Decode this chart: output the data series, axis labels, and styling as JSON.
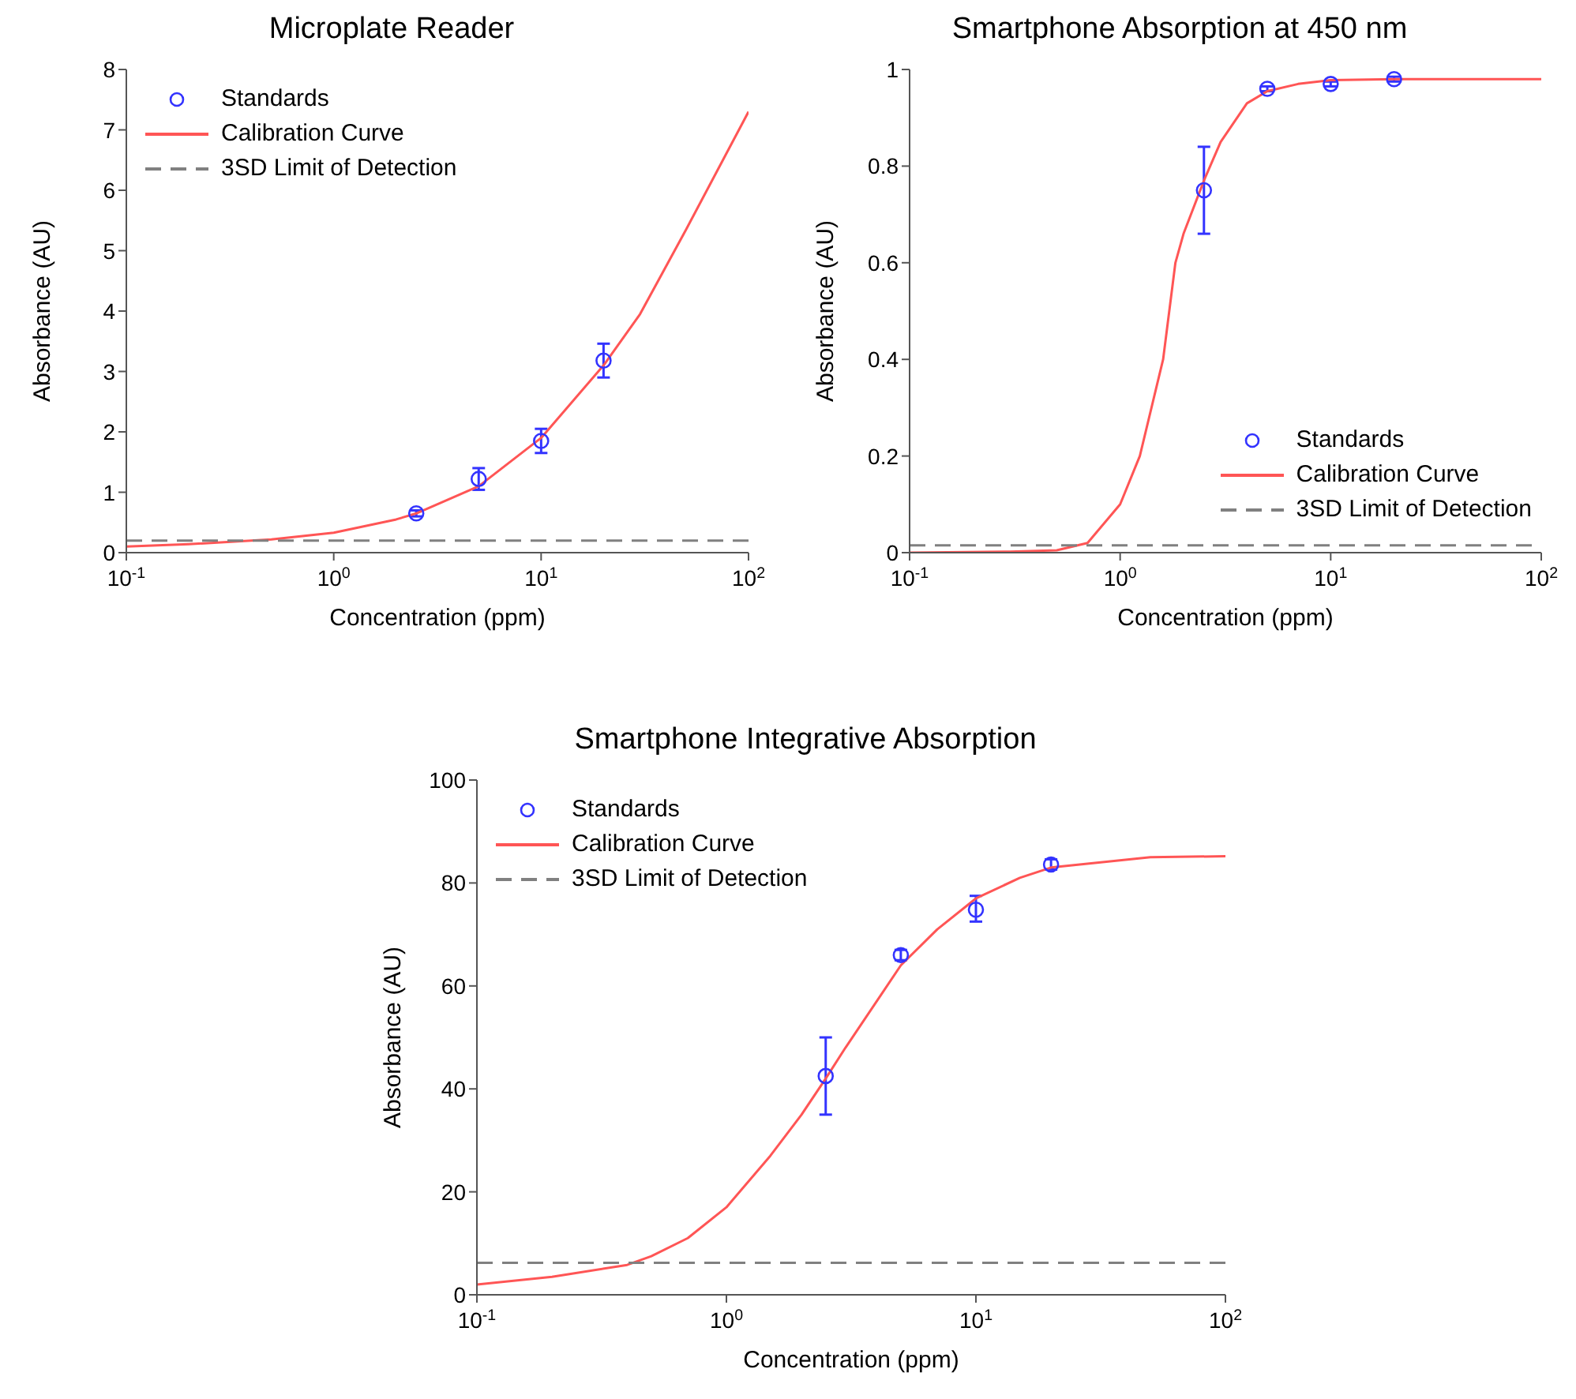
{
  "chart_data": [
    {
      "type": "line",
      "title": "Microplate Reader",
      "xlabel": "Concentration (ppm)",
      "ylabel": "Absorbance (AU)",
      "log": "x",
      "xlim": [
        0.1,
        100
      ],
      "xticks": [
        {
          "value": 0.1,
          "label": "10$^{-1}$"
        },
        {
          "value": 1,
          "label": "10$^{0}$"
        },
        {
          "value": 10,
          "label": "10$^{1}$"
        },
        {
          "value": 100,
          "label": "10$^{2}$"
        }
      ],
      "ylim": [
        0,
        8
      ],
      "yticks": [
        0,
        1,
        2,
        3,
        4,
        5,
        6,
        7,
        8
      ],
      "legend": "top left",
      "series": [
        {
          "name": "Standards",
          "type": "scatter",
          "color": "#3333ff",
          "marker": "circle",
          "x": [
            2.5,
            5,
            10,
            20
          ],
          "values": [
            0.65,
            1.22,
            1.85,
            3.18
          ],
          "errors": [
            0.05,
            0.18,
            0.2,
            0.28
          ]
        },
        {
          "name": "Calibration Curve",
          "type": "line",
          "color": "#ff5555",
          "marker": "none",
          "x": [
            0.1,
            0.2,
            0.5,
            1,
            2,
            2.5,
            5,
            10,
            20,
            30,
            50,
            100
          ],
          "values": [
            0.1,
            0.14,
            0.22,
            0.33,
            0.55,
            0.65,
            1.1,
            1.9,
            3.1,
            3.95,
            5.35,
            7.3
          ]
        },
        {
          "name": "3SD Limit of Detection",
          "type": "line",
          "color": "#808080",
          "marker": "none",
          "line_style": "dashed",
          "x": [
            0.1,
            100
          ],
          "values": [
            0.2,
            0.2
          ]
        }
      ]
    },
    {
      "type": "line",
      "title": "Smartphone Absorption at 450 nm",
      "xlabel": "Concentration (ppm)",
      "ylabel": "Absorbance (AU)",
      "log": "x",
      "xlim": [
        0.1,
        100
      ],
      "xticks": [
        {
          "value": 0.1,
          "label": "10$^{-1}$"
        },
        {
          "value": 1,
          "label": "10$^{0}$"
        },
        {
          "value": 10,
          "label": "10$^{1}$"
        },
        {
          "value": 100,
          "label": "10$^{2}$"
        }
      ],
      "ylim": [
        0,
        1
      ],
      "yticks": [
        0,
        0.2,
        0.4,
        0.6,
        0.8,
        1
      ],
      "legend": "bottom right",
      "series": [
        {
          "name": "Standards",
          "type": "scatter",
          "color": "#3333ff",
          "marker": "circle",
          "x": [
            2.5,
            5,
            10,
            20
          ],
          "values": [
            0.75,
            0.96,
            0.97,
            0.98
          ],
          "errors": [
            [
              0.66,
              0.84
            ],
            0.005,
            0.005,
            0.005
          ]
        },
        {
          "name": "Calibration Curve",
          "type": "line",
          "color": "#ff5555",
          "marker": "none",
          "x": [
            0.1,
            0.3,
            0.5,
            0.7,
            1,
            1.24,
            1.6,
            1.83,
            2,
            2.5,
            3,
            4,
            5,
            7,
            10,
            20,
            100
          ],
          "values": [
            0,
            0.002,
            0.005,
            0.02,
            0.1,
            0.2,
            0.4,
            0.6,
            0.66,
            0.77,
            0.85,
            0.93,
            0.955,
            0.97,
            0.978,
            0.98,
            0.98
          ]
        },
        {
          "name": "3SD Limit of Detection",
          "type": "line",
          "color": "#808080",
          "marker": "none",
          "line_style": "dashed",
          "x": [
            0.1,
            100
          ],
          "values": [
            0.015,
            0.015
          ]
        }
      ]
    },
    {
      "type": "line",
      "title": "Smartphone Integrative Absorption",
      "xlabel": "Concentration (ppm)",
      "ylabel": "Absorbance (AU)",
      "log": "x",
      "xlim": [
        0.1,
        100
      ],
      "xticks": [
        {
          "value": 0.1,
          "label": "10$^{-1}$"
        },
        {
          "value": 1,
          "label": "10$^{0}$"
        },
        {
          "value": 10,
          "label": "10$^{1}$"
        },
        {
          "value": 100,
          "label": "10$^{2}$"
        }
      ],
      "ylim": [
        0,
        100
      ],
      "yticks": [
        0,
        20,
        40,
        60,
        80,
        100
      ],
      "legend": "top left",
      "series": [
        {
          "name": "Standards",
          "type": "scatter",
          "color": "#3333ff",
          "marker": "circle",
          "x": [
            2.5,
            5,
            10,
            20
          ],
          "values": [
            42.5,
            66,
            74.8,
            83.6
          ],
          "errors": [
            [
              35,
              50
            ],
            1,
            [
              72.5,
              77.5
            ],
            1
          ]
        },
        {
          "name": "Calibration Curve",
          "type": "line",
          "color": "#ff5555",
          "marker": "none",
          "x": [
            0.1,
            0.2,
            0.4,
            0.5,
            0.7,
            1,
            1.5,
            2,
            2.5,
            3,
            4,
            5,
            7,
            10,
            15,
            20,
            50,
            100
          ],
          "values": [
            2,
            3.5,
            5.8,
            7.5,
            11,
            17,
            27,
            35,
            42,
            48,
            57,
            64,
            71,
            77,
            81,
            83,
            85,
            85.2
          ]
        },
        {
          "name": "3SD Limit of Detection",
          "type": "line",
          "color": "#808080",
          "marker": "none",
          "line_style": "dashed",
          "x": [
            0.1,
            100
          ],
          "values": [
            6.2,
            6.2
          ]
        }
      ]
    }
  ]
}
